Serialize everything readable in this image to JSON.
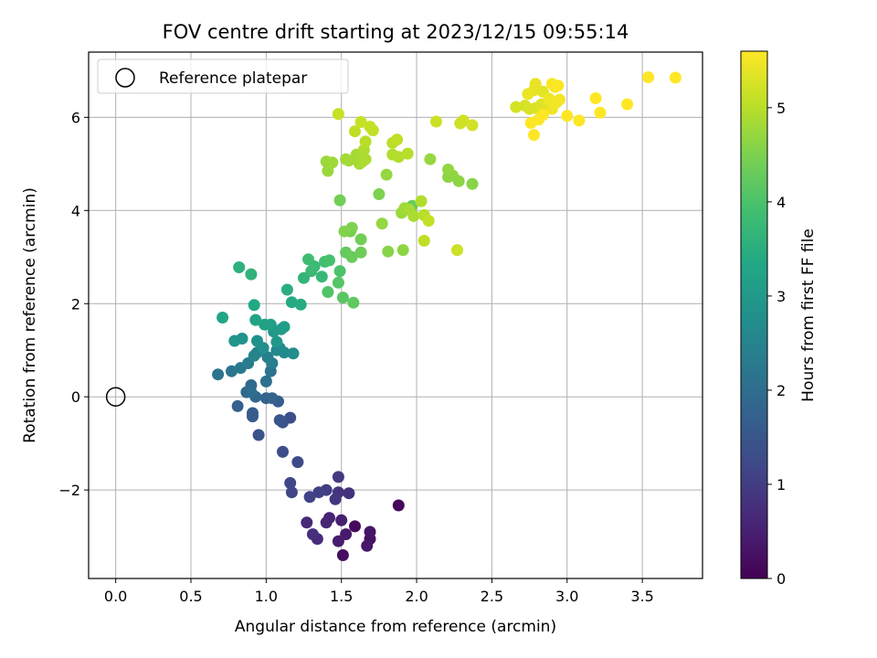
{
  "chart_data": {
    "type": "scatter",
    "title": "FOV centre drift starting at 2023/12/15 09:55:14",
    "xlabel": "Angular distance from reference (arcmin)",
    "ylabel": "Rotation from reference (arcmin)",
    "xlim": [
      -0.18,
      3.9
    ],
    "ylim": [
      -3.9,
      7.4
    ],
    "xticks": [
      0.0,
      0.5,
      1.0,
      1.5,
      2.0,
      2.5,
      3.0,
      3.5
    ],
    "xtick_labels": [
      "0.0",
      "0.5",
      "1.0",
      "1.5",
      "2.0",
      "2.5",
      "3.0",
      "3.5"
    ],
    "yticks": [
      -2,
      0,
      2,
      4,
      6
    ],
    "ytick_labels": [
      "−2",
      "0",
      "2",
      "4",
      "6"
    ],
    "grid": true,
    "legend": {
      "position": "upper-left",
      "entries": [
        "Reference platepar"
      ]
    },
    "reference_point": {
      "x": 0.0,
      "y": 0.0
    },
    "colorbar": {
      "label": "Hours from first FF file",
      "colormap": "viridis",
      "range": [
        0,
        5.6
      ],
      "ticks": [
        0,
        1,
        2,
        3,
        4,
        5
      ],
      "tick_labels": [
        "0",
        "1",
        "2",
        "3",
        "4",
        "5"
      ]
    },
    "points": [
      [
        1.88,
        -2.33,
        0.1
      ],
      [
        1.59,
        -2.78,
        0.15
      ],
      [
        1.51,
        -3.4,
        0.2
      ],
      [
        1.69,
        -3.05,
        0.25
      ],
      [
        1.69,
        -2.9,
        0.3
      ],
      [
        1.67,
        -3.2,
        0.35
      ],
      [
        1.53,
        -2.95,
        0.4
      ],
      [
        1.48,
        -3.1,
        0.45
      ],
      [
        1.5,
        -2.65,
        0.5
      ],
      [
        1.42,
        -2.6,
        0.55
      ],
      [
        1.4,
        -2.7,
        0.6
      ],
      [
        1.27,
        -2.7,
        0.65
      ],
      [
        1.34,
        -3.05,
        0.7
      ],
      [
        1.31,
        -2.95,
        0.75
      ],
      [
        1.55,
        -2.07,
        0.8
      ],
      [
        1.48,
        -2.05,
        0.85
      ],
      [
        1.46,
        -2.2,
        0.9
      ],
      [
        1.48,
        -1.72,
        0.95
      ],
      [
        1.4,
        -2.0,
        1.0
      ],
      [
        1.35,
        -2.05,
        1.05
      ],
      [
        1.29,
        -2.15,
        1.1
      ],
      [
        1.17,
        -2.05,
        1.15
      ],
      [
        1.16,
        -1.85,
        1.2
      ],
      [
        1.21,
        -1.4,
        1.25
      ],
      [
        1.11,
        -1.18,
        1.3
      ],
      [
        1.16,
        -0.45,
        1.35
      ],
      [
        0.95,
        -0.82,
        1.4
      ],
      [
        1.11,
        -0.55,
        1.45
      ],
      [
        1.09,
        -0.5,
        1.5
      ],
      [
        0.91,
        -0.42,
        1.55
      ],
      [
        0.91,
        -0.35,
        1.6
      ],
      [
        1.08,
        -0.1,
        1.65
      ],
      [
        0.81,
        -0.2,
        1.7
      ],
      [
        1.0,
        -0.03,
        1.75
      ],
      [
        1.04,
        -0.03,
        1.8
      ],
      [
        0.93,
        0.0,
        1.85
      ],
      [
        0.87,
        0.1,
        1.9
      ],
      [
        0.9,
        0.25,
        1.95
      ],
      [
        0.9,
        0.1,
        2.0
      ],
      [
        1.0,
        0.33,
        2.05
      ],
      [
        1.03,
        0.55,
        2.1
      ],
      [
        0.68,
        0.48,
        2.15
      ],
      [
        0.77,
        0.55,
        2.2
      ],
      [
        0.83,
        0.62,
        2.25
      ],
      [
        0.88,
        0.72,
        2.3
      ],
      [
        1.04,
        0.72,
        2.35
      ],
      [
        1.01,
        0.85,
        2.4
      ],
      [
        0.94,
        0.95,
        2.45
      ],
      [
        0.92,
        0.88,
        2.5
      ],
      [
        1.07,
        1.0,
        2.55
      ],
      [
        1.09,
        1.05,
        2.6
      ],
      [
        1.12,
        0.95,
        2.65
      ],
      [
        1.18,
        0.93,
        2.7
      ],
      [
        0.98,
        1.05,
        2.75
      ],
      [
        0.94,
        1.2,
        2.8
      ],
      [
        0.84,
        1.25,
        2.85
      ],
      [
        0.79,
        1.2,
        2.9
      ],
      [
        1.07,
        1.18,
        2.95
      ],
      [
        1.05,
        1.4,
        3.0
      ],
      [
        1.1,
        1.45,
        3.05
      ],
      [
        1.12,
        1.5,
        3.1
      ],
      [
        1.03,
        1.55,
        3.15
      ],
      [
        0.99,
        1.55,
        3.2
      ],
      [
        0.93,
        1.65,
        3.25
      ],
      [
        0.71,
        1.7,
        3.3
      ],
      [
        0.92,
        1.97,
        3.35
      ],
      [
        1.17,
        2.03,
        3.4
      ],
      [
        1.23,
        1.98,
        3.45
      ],
      [
        1.14,
        2.3,
        3.5
      ],
      [
        0.82,
        2.78,
        3.55
      ],
      [
        0.9,
        2.63,
        3.6
      ],
      [
        1.25,
        2.55,
        3.65
      ],
      [
        1.37,
        2.58,
        3.7
      ],
      [
        1.3,
        2.7,
        3.75
      ],
      [
        1.32,
        2.8,
        3.8
      ],
      [
        1.28,
        2.95,
        3.85
      ],
      [
        1.39,
        2.9,
        3.9
      ],
      [
        1.42,
        2.93,
        3.95
      ],
      [
        1.49,
        2.7,
        4.0
      ],
      [
        1.41,
        2.25,
        4.05
      ],
      [
        1.48,
        2.45,
        4.1
      ],
      [
        1.51,
        2.13,
        4.15
      ],
      [
        1.58,
        2.02,
        4.2
      ],
      [
        1.53,
        3.1,
        4.25
      ],
      [
        1.57,
        3.0,
        4.3
      ],
      [
        1.63,
        3.1,
        4.35
      ],
      [
        1.63,
        3.38,
        4.4
      ],
      [
        1.56,
        3.55,
        4.45
      ],
      [
        1.57,
        3.63,
        4.5
      ],
      [
        1.52,
        3.55,
        4.55
      ],
      [
        1.81,
        3.12,
        4.6
      ],
      [
        1.91,
        3.15,
        4.65
      ],
      [
        1.77,
        3.72,
        4.7
      ],
      [
        1.9,
        3.95,
        4.75
      ],
      [
        1.92,
        4.05,
        4.8
      ],
      [
        1.95,
        4.02,
        4.85
      ],
      [
        1.98,
        3.88,
        4.9
      ],
      [
        2.03,
        4.2,
        4.95
      ],
      [
        2.05,
        3.9,
        5.0
      ],
      [
        2.05,
        3.35,
        5.05
      ],
      [
        2.08,
        3.78,
        5.1
      ],
      [
        2.27,
        3.15,
        5.15
      ]
    ],
    "points_b": [
      [
        1.97,
        4.1,
        4.3
      ],
      [
        1.49,
        4.22,
        4.4
      ],
      [
        1.75,
        4.35,
        4.5
      ],
      [
        2.37,
        4.57,
        4.6
      ],
      [
        2.28,
        4.63,
        4.62
      ],
      [
        2.21,
        4.72,
        4.64
      ],
      [
        2.24,
        4.75,
        4.66
      ],
      [
        2.21,
        4.88,
        4.68
      ],
      [
        1.8,
        4.77,
        4.7
      ],
      [
        2.09,
        5.1,
        4.72
      ],
      [
        1.41,
        4.85,
        4.74
      ],
      [
        1.4,
        5.05,
        4.76
      ],
      [
        1.44,
        5.03,
        4.78
      ],
      [
        1.55,
        5.07,
        4.8
      ],
      [
        1.53,
        5.1,
        4.82
      ],
      [
        1.6,
        5.2,
        4.84
      ],
      [
        1.62,
        5.0,
        4.86
      ],
      [
        1.64,
        5.05,
        4.88
      ],
      [
        1.66,
        5.1,
        4.9
      ],
      [
        1.65,
        5.3,
        4.92
      ],
      [
        1.84,
        5.2,
        4.94
      ],
      [
        1.88,
        5.15,
        4.96
      ],
      [
        1.94,
        5.22,
        4.98
      ],
      [
        1.66,
        5.48,
        5.0
      ],
      [
        1.84,
        5.45,
        5.02
      ],
      [
        1.87,
        5.52,
        5.04
      ],
      [
        1.59,
        5.7,
        5.06
      ],
      [
        1.69,
        5.8,
        5.08
      ],
      [
        1.71,
        5.72,
        5.1
      ],
      [
        1.63,
        5.9,
        5.12
      ],
      [
        1.48,
        6.07,
        5.14
      ],
      [
        2.13,
        5.91,
        5.16
      ],
      [
        2.29,
        5.87,
        5.18
      ],
      [
        2.31,
        5.93,
        5.2
      ],
      [
        2.37,
        5.83,
        5.22
      ]
    ],
    "points_c": [
      [
        2.66,
        6.22,
        5.24
      ],
      [
        2.72,
        6.25,
        5.26
      ],
      [
        2.75,
        6.18,
        5.28
      ],
      [
        2.79,
        6.2,
        5.3
      ],
      [
        2.83,
        6.28,
        5.32
      ],
      [
        2.85,
        6.15,
        5.34
      ],
      [
        2.88,
        6.3,
        5.36
      ],
      [
        2.84,
        6.55,
        5.38
      ],
      [
        2.78,
        6.58,
        5.4
      ],
      [
        2.79,
        6.72,
        5.42
      ],
      [
        2.74,
        6.5,
        5.44
      ],
      [
        2.88,
        6.4,
        5.46
      ],
      [
        2.9,
        6.18,
        5.48
      ],
      [
        2.93,
        6.32,
        5.5
      ],
      [
        2.95,
        6.38,
        5.52
      ],
      [
        2.92,
        6.65,
        5.54
      ],
      [
        2.9,
        6.72,
        5.56
      ],
      [
        2.94,
        6.68,
        5.58
      ],
      [
        2.76,
        5.88,
        5.6
      ],
      [
        2.78,
        5.62,
        5.62
      ],
      [
        2.81,
        5.95,
        5.64
      ],
      [
        2.84,
        6.05,
        5.66
      ],
      [
        3.0,
        6.03,
        5.68
      ],
      [
        3.08,
        5.93,
        5.7
      ],
      [
        3.19,
        6.41,
        5.72
      ],
      [
        3.22,
        6.1,
        5.74
      ],
      [
        3.4,
        6.28,
        5.76
      ],
      [
        3.54,
        6.86,
        5.78
      ],
      [
        3.72,
        6.85,
        5.8
      ]
    ]
  }
}
